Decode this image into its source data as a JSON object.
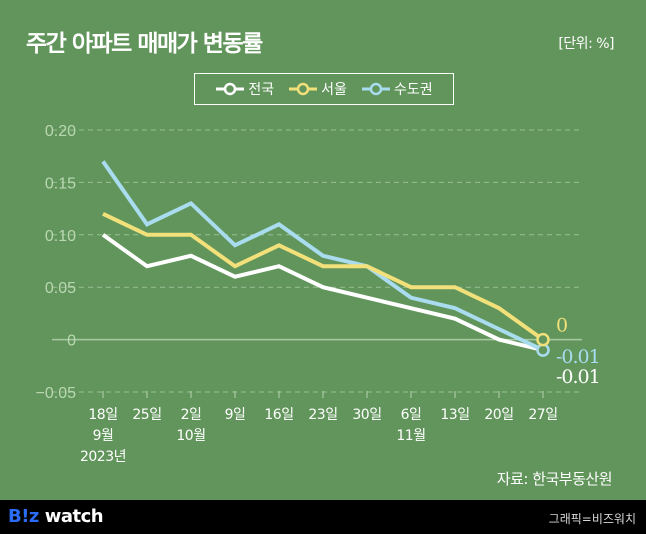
{
  "header": {
    "title": "주간 아파트 매매가 변동률",
    "unit": "[단위: %]"
  },
  "source": "자료: 한국부동산원",
  "footer": {
    "logo_part1": "B!z",
    "logo_part2": "watch",
    "credit": "그래픽=비즈워치"
  },
  "colors": {
    "background": "#62955c",
    "nationwide": "#ffffff",
    "seoul": "#f2e07a",
    "capital": "#a9dcef",
    "grid": "#a9c9a3",
    "axis_text": "#b9d8b2"
  },
  "chart_data": {
    "type": "line",
    "title": "주간 아파트 매매가 변동률",
    "xlabel": "",
    "ylabel": "",
    "unit": "%",
    "ylim": [
      -0.05,
      0.2
    ],
    "yticks": [
      0.2,
      0.15,
      0.1,
      0.05,
      0,
      -0.05
    ],
    "ytick_labels": [
      "0.20",
      "0.15",
      "0.10",
      "0.05",
      "0",
      "−0.05"
    ],
    "grid": true,
    "legend_position": "top-center",
    "categories": [
      "18일",
      "25일",
      "2일",
      "9일",
      "16일",
      "23일",
      "30일",
      "6일",
      "13일",
      "20일",
      "27일"
    ],
    "category_sublabels": [
      [
        "9월",
        "2023년"
      ],
      [],
      [
        "10월"
      ],
      [],
      [],
      [],
      [],
      [
        "11월"
      ],
      [],
      [],
      []
    ],
    "series": [
      {
        "name": "전국",
        "color": "#ffffff",
        "values": [
          0.1,
          0.07,
          0.08,
          0.06,
          0.07,
          0.05,
          0.04,
          0.03,
          0.02,
          0.0,
          -0.01
        ],
        "end_label": "-0.01"
      },
      {
        "name": "서울",
        "color": "#f2e07a",
        "values": [
          0.12,
          0.1,
          0.1,
          0.07,
          0.09,
          0.07,
          0.07,
          0.05,
          0.05,
          0.03,
          0.0
        ],
        "end_label": "0"
      },
      {
        "name": "수도권",
        "color": "#a9dcef",
        "values": [
          0.17,
          0.11,
          0.13,
          0.09,
          0.11,
          0.08,
          0.07,
          0.04,
          0.03,
          0.01,
          -0.01
        ],
        "end_label": "-0.01"
      }
    ]
  }
}
